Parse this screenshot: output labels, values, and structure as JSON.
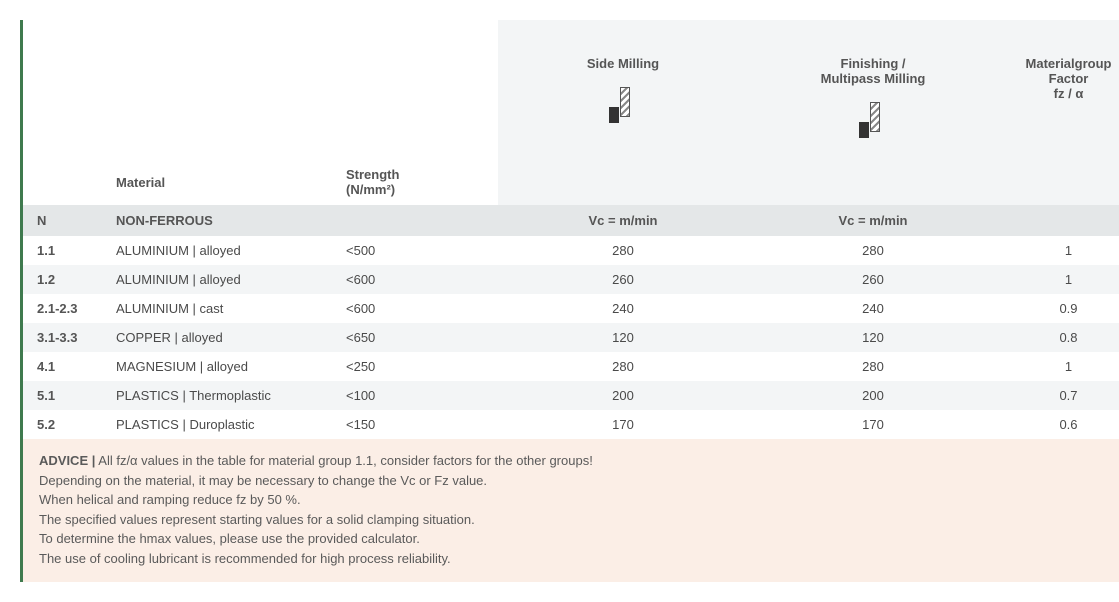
{
  "headers": {
    "side_milling": "Side Milling",
    "finishing": "Finishing /\nMultipass Milling",
    "factor": "Materialgroup\nFactor\nfz / α",
    "material": "Material",
    "strength": "Strength\n(N/mm²)",
    "vc_label": "Vc = m/min"
  },
  "group": {
    "code": "N",
    "name": "NON-FERROUS"
  },
  "rows": [
    {
      "code": "1.1",
      "material": "ALUMINIUM |  alloyed",
      "strength": "<500",
      "side": "280",
      "finish": "280",
      "factor": "1"
    },
    {
      "code": "1.2",
      "material": "ALUMINIUM | alloyed",
      "strength": "<600",
      "side": "260",
      "finish": "260",
      "factor": "1"
    },
    {
      "code": "2.1-2.3",
      "material": "ALUMINIUM | cast",
      "strength": "<600",
      "side": "240",
      "finish": "240",
      "factor": "0.9"
    },
    {
      "code": "3.1-3.3",
      "material": "COPPER | alloyed",
      "strength": "<650",
      "side": "120",
      "finish": "120",
      "factor": "0.8"
    },
    {
      "code": "4.1",
      "material": "MAGNESIUM | alloyed",
      "strength": "<250",
      "side": "280",
      "finish": "280",
      "factor": "1"
    },
    {
      "code": "5.1",
      "material": "PLASTICS | Thermoplastic",
      "strength": "<100",
      "side": "200",
      "finish": "200",
      "factor": "0.7"
    },
    {
      "code": "5.2",
      "material": "PLASTICS | Duroplastic",
      "strength": "<150",
      "side": "170",
      "finish": "170",
      "factor": "0.6"
    }
  ],
  "advice": {
    "label": "ADVICE  |",
    "line1": "  All fz/α values in the table for material group 1.1, consider factors for the other groups!",
    "line2": "Depending on the material, it may be necessary to change the Vc or Fz value.",
    "line3": "When helical and ramping reduce fz by 50 %.",
    "line4": "The specified values represent starting values for a solid clamping situation.",
    "line5": "To determine the hmax values, please use the provided calculator.",
    "line6": "The use of cooling lubricant is recommended for high process reliability."
  },
  "style": {
    "accent_border": "#3f7a4e",
    "header_bg": "#f3f5f6",
    "group_bg": "#e4e7e8",
    "alt_row_bg": "#f3f5f6",
    "advice_bg": "#fbeee6",
    "text_color": "#4a4a4a"
  }
}
